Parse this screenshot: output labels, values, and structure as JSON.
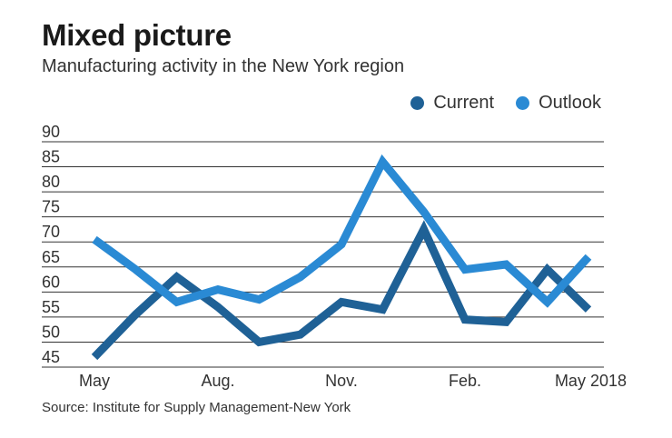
{
  "header": {
    "title": "Mixed picture",
    "subtitle": "Manufacturing activity in the New York region"
  },
  "source": "Source: Institute for Supply Management-New York",
  "colors": {
    "current": "#1f6196",
    "outlook": "#2a8ad4",
    "grid": "#333333"
  },
  "chart_data": {
    "type": "line",
    "x": [
      0,
      1,
      2,
      3,
      4,
      5,
      6,
      7,
      8,
      9,
      10,
      11,
      12
    ],
    "x_tick_labels": [
      {
        "x": 0,
        "label": "May"
      },
      {
        "x": 3,
        "label": "Aug."
      },
      {
        "x": 6,
        "label": "Nov."
      },
      {
        "x": 9,
        "label": "Feb."
      },
      {
        "x": 12,
        "label": "May 2018"
      }
    ],
    "ylim": [
      45,
      90
    ],
    "yticks": [
      45,
      50,
      55,
      60,
      65,
      70,
      75,
      80,
      85,
      90
    ],
    "grid": true,
    "legend_position": "top-right",
    "series": [
      {
        "name": "Current",
        "values": [
          47,
          55.5,
          63,
          57,
          50,
          51.5,
          58,
          56.5,
          72.5,
          54.5,
          54,
          64.5,
          56.5
        ]
      },
      {
        "name": "Outlook",
        "values": [
          70.5,
          64.5,
          58,
          60.5,
          58.5,
          63,
          69.5,
          86,
          76,
          64.5,
          65.5,
          58,
          67
        ]
      }
    ]
  }
}
